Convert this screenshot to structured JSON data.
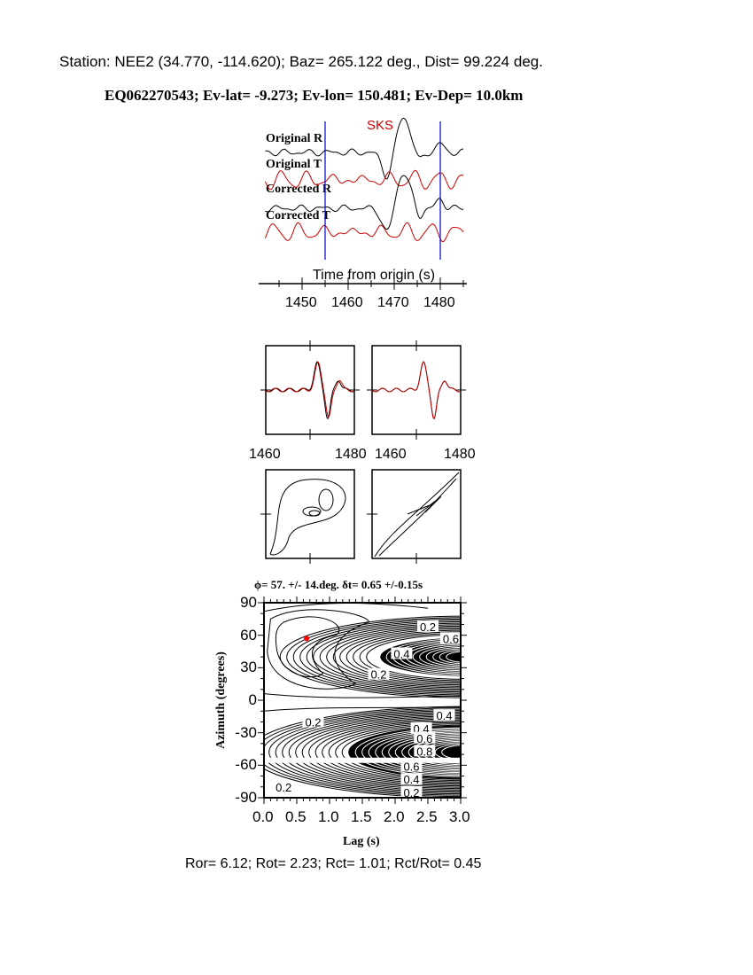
{
  "header": {
    "station_line": "Station: NEE2 (34.770, -114.620); Baz=  265.122 deg., Dist=   99.224 deg.",
    "event_line": "EQ062270543; Ev-lat=  -9.273; Ev-lon= 150.481; Ev-Dep= 10.0km"
  },
  "seismograms": {
    "phase_label": "SKS",
    "traces": [
      "Original R",
      "Original T",
      "Corrected R",
      "Corrected T"
    ],
    "xlabel": "Time from origin (s)",
    "xticks": [
      "1450",
      "1460",
      "1470",
      "1480"
    ],
    "window_marks_s": [
      1455,
      1480
    ],
    "colors": {
      "radial": "#000000",
      "transverse": "#cc0000",
      "window": "#0000cc"
    }
  },
  "waveform_panels": {
    "xticks": [
      "1460",
      "1480"
    ]
  },
  "chart_data": {
    "type": "heatmap",
    "title": "ϕ= 57. +/- 14.deg. δt= 0.65 +/-0.15s",
    "xlabel": "Lag (s)",
    "ylabel": "Azimuth (degrees)",
    "xlim": [
      0.0,
      3.0
    ],
    "ylim": [
      -90,
      90
    ],
    "xticks": [
      "0.0",
      "0.5",
      "1.0",
      "1.5",
      "2.0",
      "2.5",
      "3.0"
    ],
    "yticks": [
      "90",
      "60",
      "30",
      "0",
      "-30",
      "-60",
      "-90"
    ],
    "best_fit": {
      "lag": 0.65,
      "azimuth": 57,
      "color": "#ff0000"
    },
    "contour_labels": [
      "0.2",
      "0.6",
      "0.4",
      "0.2",
      "0.2",
      "0.2",
      "0.4",
      "0.4",
      "0.6",
      "0.8",
      "0.6",
      "0.4",
      "0.2",
      "0.2"
    ]
  },
  "footer": {
    "ratios": "Ror= 6.12; Rot= 2.23; Rct= 1.01; Rct/Rot= 0.45"
  }
}
